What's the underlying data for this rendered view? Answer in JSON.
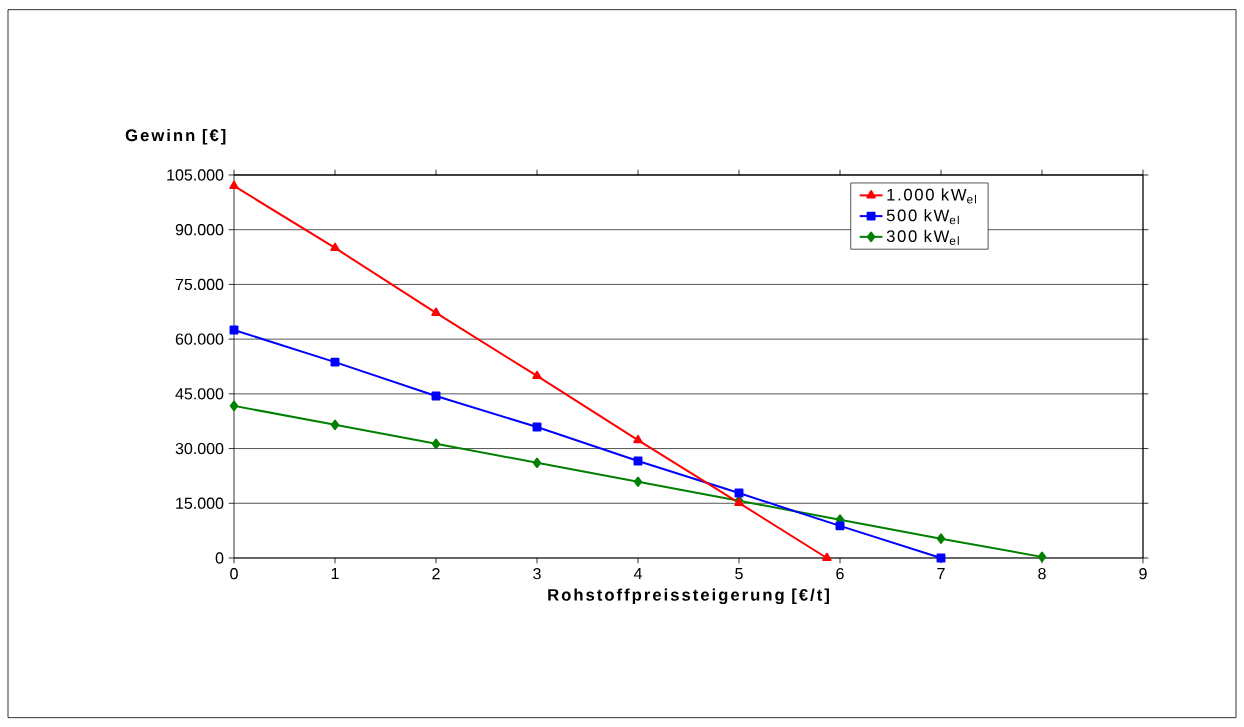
{
  "chart_data": {
    "type": "line",
    "xlabel": "Rohstoffpreissteigerung [€/t]",
    "ylabel": "Gewinn [€]",
    "series": [
      {
        "name": "1.000 kW$_{el}$",
        "color": "#ff0000",
        "marker": "triangle",
        "x": [
          0,
          1,
          2,
          3,
          4,
          5,
          5.87
        ],
        "values": [
          102000,
          85000,
          67200,
          49900,
          32300,
          15100,
          0
        ]
      },
      {
        "name": "500 kW$_{el}$",
        "color": "#0000ff",
        "marker": "square",
        "x": [
          0,
          1,
          2,
          3,
          4,
          5,
          6,
          7
        ],
        "values": [
          62500,
          53700,
          44400,
          35900,
          26600,
          17800,
          8800,
          0
        ]
      },
      {
        "name": "300 kW$_{el}$",
        "color": "#008000",
        "marker": "diamond",
        "x": [
          0,
          1,
          2,
          3,
          4,
          5,
          6,
          7,
          8
        ],
        "values": [
          41700,
          36500,
          31300,
          26100,
          20900,
          15700,
          10500,
          5300,
          300
        ]
      }
    ],
    "xlim": [
      0,
      9
    ],
    "xticks": [
      0,
      1,
      2,
      3,
      4,
      5,
      6,
      7,
      8,
      9
    ],
    "ylim": [
      0,
      105000
    ],
    "yticks": [
      {
        "value": 0,
        "label": "0"
      },
      {
        "value": 15000,
        "label": "15.000"
      },
      {
        "value": 30000,
        "label": "30.000"
      },
      {
        "value": 45000,
        "label": "45.000"
      },
      {
        "value": 60000,
        "label": "60.000"
      },
      {
        "value": 75000,
        "label": "75.000"
      },
      {
        "value": 90000,
        "label": "90.000"
      },
      {
        "value": 105000,
        "label": "105.000"
      }
    ],
    "grid": "y",
    "legend": "top right",
    "line_style": "solid"
  }
}
